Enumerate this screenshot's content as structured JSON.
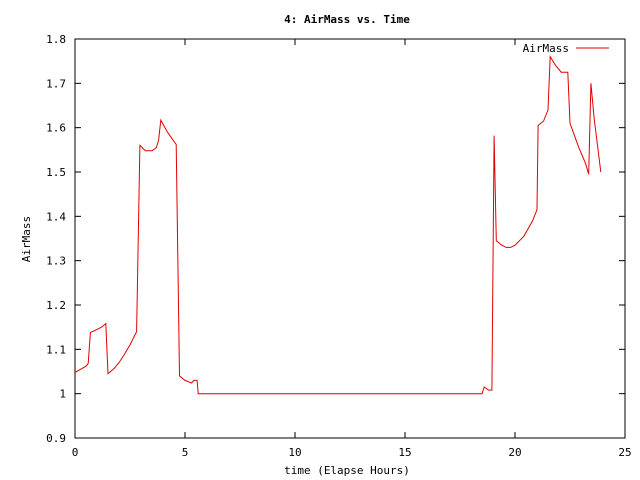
{
  "chart_data": {
    "type": "line",
    "title": "4: AirMass vs. Time",
    "xlabel": "time (Elapse Hours)",
    "ylabel": "AirMass",
    "xlim": [
      0,
      25
    ],
    "ylim": [
      0.9,
      1.8
    ],
    "xticks": [
      0,
      5,
      10,
      15,
      20,
      25
    ],
    "xtick_labels": [
      "0",
      "5",
      "10",
      "15",
      "20",
      "25"
    ],
    "yticks": [
      0.9,
      1.0,
      1.1,
      1.2,
      1.3,
      1.4,
      1.5,
      1.6,
      1.7,
      1.8
    ],
    "ytick_labels": [
      "0.9",
      "1",
      "1.1",
      "1.2",
      "1.3",
      "1.4",
      "1.5",
      "1.6",
      "1.7",
      "1.8"
    ],
    "grid": false,
    "legend": "top-right",
    "series": [
      {
        "name": "AirMass",
        "color": "#e00000",
        "points": [
          [
            0.0,
            1.048
          ],
          [
            0.5,
            1.062
          ],
          [
            0.6,
            1.068
          ],
          [
            0.7,
            1.138
          ],
          [
            1.0,
            1.145
          ],
          [
            1.2,
            1.15
          ],
          [
            1.4,
            1.158
          ],
          [
            1.5,
            1.045
          ],
          [
            1.8,
            1.058
          ],
          [
            2.0,
            1.07
          ],
          [
            2.2,
            1.085
          ],
          [
            2.5,
            1.11
          ],
          [
            2.8,
            1.14
          ],
          [
            2.95,
            1.56
          ],
          [
            3.2,
            1.548
          ],
          [
            3.5,
            1.548
          ],
          [
            3.7,
            1.555
          ],
          [
            3.8,
            1.572
          ],
          [
            3.9,
            1.617
          ],
          [
            4.2,
            1.59
          ],
          [
            4.6,
            1.562
          ],
          [
            4.75,
            1.04
          ],
          [
            5.0,
            1.03
          ],
          [
            5.3,
            1.024
          ],
          [
            5.4,
            1.03
          ],
          [
            5.55,
            1.03
          ],
          [
            5.6,
            1.0
          ],
          [
            10.0,
            1.0
          ],
          [
            15.0,
            1.0
          ],
          [
            18.5,
            1.0
          ],
          [
            18.6,
            1.015
          ],
          [
            18.8,
            1.008
          ],
          [
            18.95,
            1.008
          ],
          [
            19.05,
            1.582
          ],
          [
            19.15,
            1.345
          ],
          [
            19.4,
            1.335
          ],
          [
            19.6,
            1.33
          ],
          [
            19.8,
            1.33
          ],
          [
            20.0,
            1.335
          ],
          [
            20.4,
            1.355
          ],
          [
            20.8,
            1.39
          ],
          [
            21.0,
            1.415
          ],
          [
            21.05,
            1.605
          ],
          [
            21.3,
            1.615
          ],
          [
            21.5,
            1.64
          ],
          [
            21.6,
            1.76
          ],
          [
            21.85,
            1.74
          ],
          [
            22.1,
            1.725
          ],
          [
            22.4,
            1.725
          ],
          [
            22.5,
            1.61
          ],
          [
            22.9,
            1.555
          ],
          [
            23.2,
            1.52
          ],
          [
            23.35,
            1.495
          ],
          [
            23.45,
            1.7
          ],
          [
            23.6,
            1.62
          ],
          [
            23.9,
            1.5
          ]
        ]
      }
    ]
  }
}
